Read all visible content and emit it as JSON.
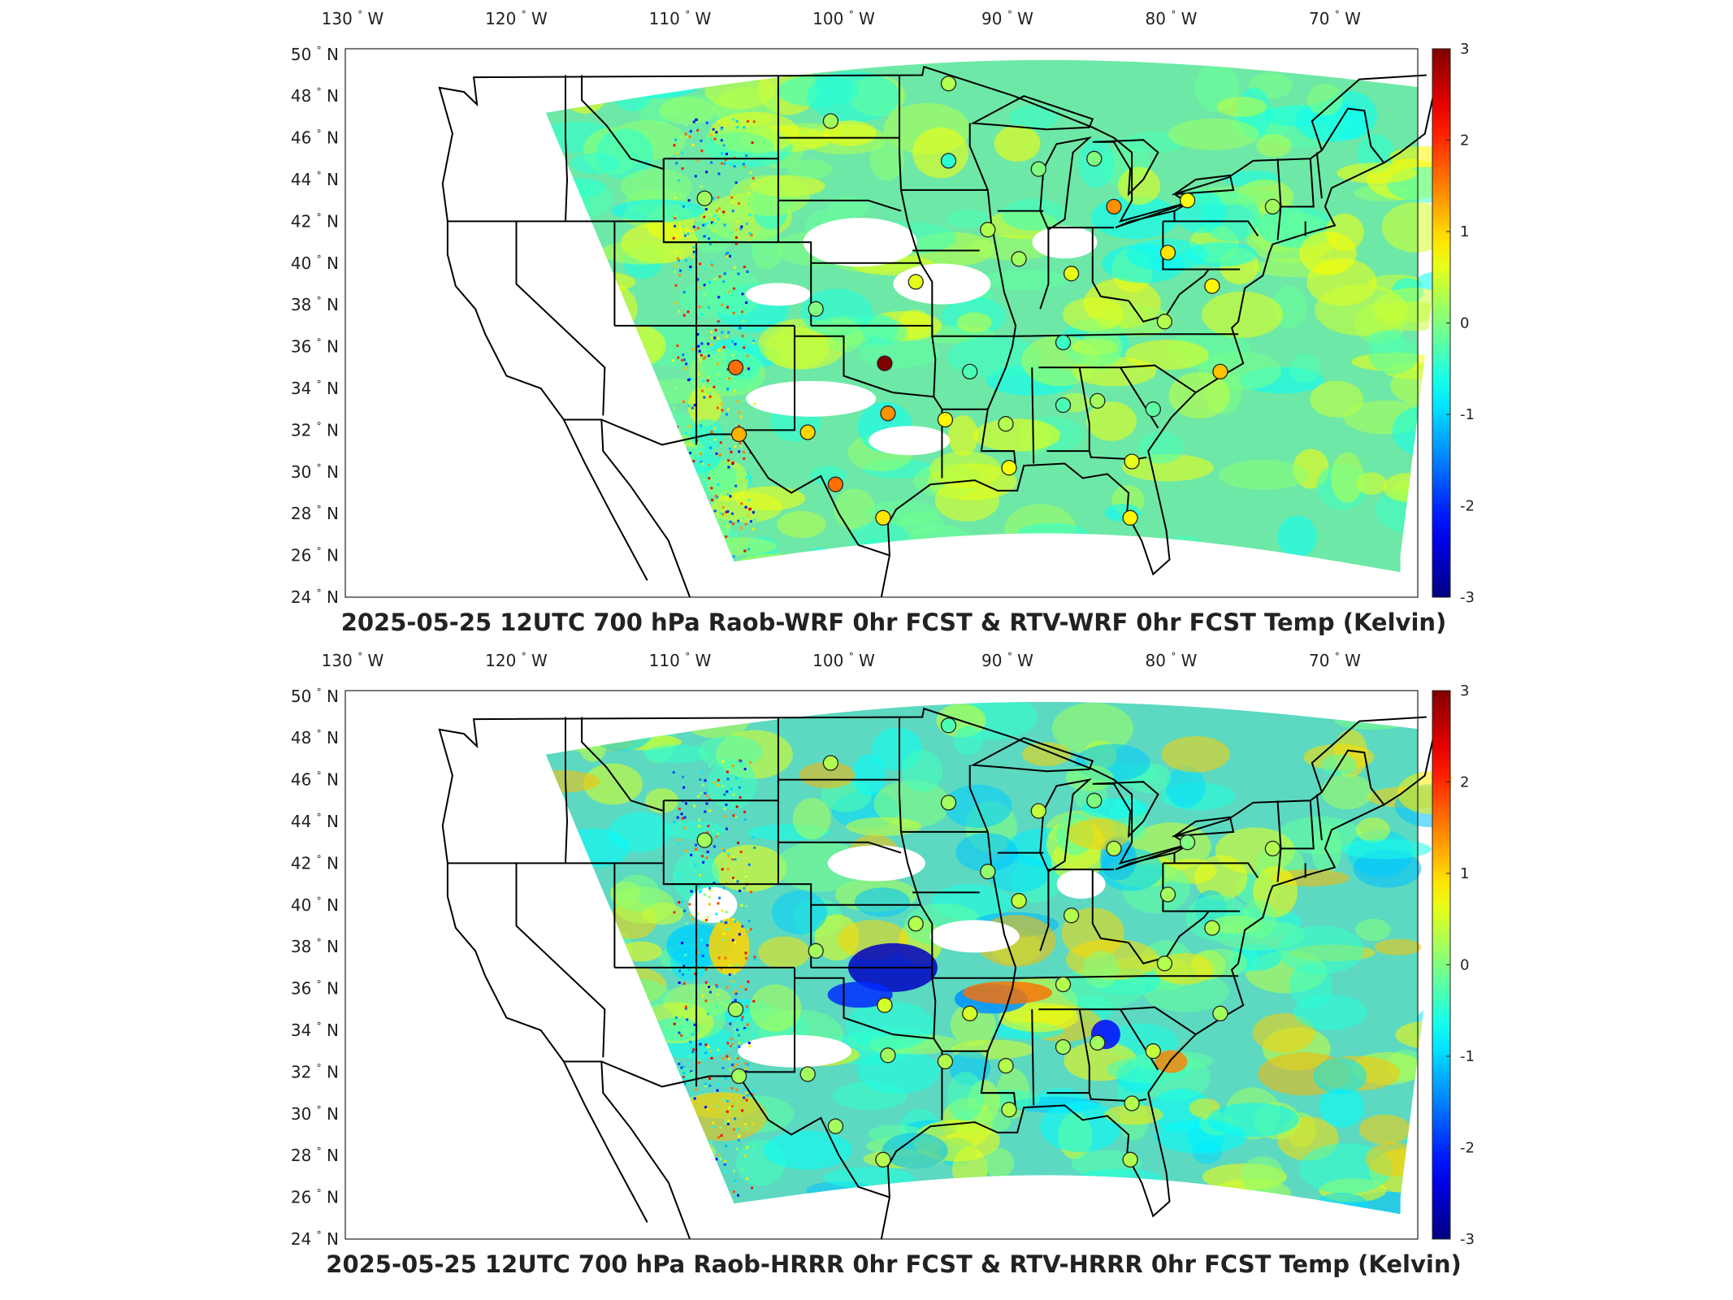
{
  "longitude_labels": [
    {
      "deg": "130",
      "dir": "W"
    },
    {
      "deg": "120",
      "dir": "W"
    },
    {
      "deg": "110",
      "dir": "W"
    },
    {
      "deg": "100",
      "dir": "W"
    },
    {
      "deg": "90",
      "dir": "W"
    },
    {
      "deg": "80",
      "dir": "W"
    },
    {
      "deg": "70",
      "dir": "W"
    }
  ],
  "latitude_labels": [
    {
      "deg": "50",
      "dir": "N"
    },
    {
      "deg": "48",
      "dir": "N"
    },
    {
      "deg": "46",
      "dir": "N"
    },
    {
      "deg": "44",
      "dir": "N"
    },
    {
      "deg": "42",
      "dir": "N"
    },
    {
      "deg": "40",
      "dir": "N"
    },
    {
      "deg": "38",
      "dir": "N"
    },
    {
      "deg": "36",
      "dir": "N"
    },
    {
      "deg": "34",
      "dir": "N"
    },
    {
      "deg": "32",
      "dir": "N"
    },
    {
      "deg": "30",
      "dir": "N"
    },
    {
      "deg": "28",
      "dir": "N"
    },
    {
      "deg": "26",
      "dir": "N"
    },
    {
      "deg": "24",
      "dir": "N"
    }
  ],
  "degree_symbol": "°",
  "colorbar": {
    "min": -3,
    "max": 3,
    "ticks": [
      "3",
      "2",
      "1",
      "0",
      "-1",
      "-2",
      "-3"
    ],
    "colormap": "jet"
  },
  "panels": [
    {
      "id": "top",
      "title": "2025-05-25 12UTC 700 hPa Raob-WRF 0hr FCST & RTV-WRF 0hr FCST Temp (Kelvin)",
      "field_tint": "#6ee8a6",
      "stations": [
        {
          "lon": -93.6,
          "lat": 48.6,
          "v": 0.3
        },
        {
          "lon": -100.8,
          "lat": 46.8,
          "v": 0.2
        },
        {
          "lon": -93.6,
          "lat": 44.9,
          "v": -0.5
        },
        {
          "lon": -88.1,
          "lat": 44.5,
          "v": 0.0
        },
        {
          "lon": -84.7,
          "lat": 45.0,
          "v": 0.0
        },
        {
          "lon": -108.5,
          "lat": 43.1,
          "v": 0.2
        },
        {
          "lon": -83.5,
          "lat": 42.7,
          "v": 1.4
        },
        {
          "lon": -79.0,
          "lat": 43.0,
          "v": 0.7
        },
        {
          "lon": -73.8,
          "lat": 42.7,
          "v": 0.2
        },
        {
          "lon": -91.2,
          "lat": 41.6,
          "v": 0.3
        },
        {
          "lon": -89.3,
          "lat": 40.2,
          "v": 0.2
        },
        {
          "lon": -86.1,
          "lat": 39.5,
          "v": 0.6
        },
        {
          "lon": -80.2,
          "lat": 40.5,
          "v": 0.9
        },
        {
          "lon": -95.6,
          "lat": 39.1,
          "v": 0.6
        },
        {
          "lon": -101.7,
          "lat": 37.8,
          "v": 0.0
        },
        {
          "lon": -77.5,
          "lat": 38.9,
          "v": 0.8
        },
        {
          "lon": -80.4,
          "lat": 37.2,
          "v": 0.3
        },
        {
          "lon": -86.6,
          "lat": 36.2,
          "v": -0.4
        },
        {
          "lon": -97.5,
          "lat": 35.2,
          "v": 3.0
        },
        {
          "lon": -106.6,
          "lat": 35.0,
          "v": 1.6
        },
        {
          "lon": -92.3,
          "lat": 34.8,
          "v": -0.3
        },
        {
          "lon": -77.0,
          "lat": 34.8,
          "v": 1.1
        },
        {
          "lon": -97.3,
          "lat": 32.8,
          "v": 1.4
        },
        {
          "lon": -93.8,
          "lat": 32.5,
          "v": 0.8
        },
        {
          "lon": -90.1,
          "lat": 32.3,
          "v": 0.3
        },
        {
          "lon": -86.6,
          "lat": 33.2,
          "v": -0.3
        },
        {
          "lon": -84.5,
          "lat": 33.4,
          "v": 0.2
        },
        {
          "lon": -81.1,
          "lat": 33.0,
          "v": -0.2
        },
        {
          "lon": -106.4,
          "lat": 31.8,
          "v": 1.2
        },
        {
          "lon": -102.2,
          "lat": 31.9,
          "v": 1.0
        },
        {
          "lon": -100.5,
          "lat": 29.4,
          "v": 1.6
        },
        {
          "lon": -97.6,
          "lat": 27.8,
          "v": 0.9
        },
        {
          "lon": -89.9,
          "lat": 30.2,
          "v": 0.7
        },
        {
          "lon": -82.4,
          "lat": 30.5,
          "v": 0.6
        },
        {
          "lon": -82.5,
          "lat": 27.8,
          "v": 0.8
        }
      ]
    },
    {
      "id": "bottom",
      "title": "2025-05-25 12UTC 700 hPa Raob-HRRR 0hr FCST & RTV-HRRR 0hr FCST Temp (Kelvin)",
      "field_tint": "#5cd9c0",
      "stations": [
        {
          "lon": -93.6,
          "lat": 48.6,
          "v": -0.3
        },
        {
          "lon": -100.8,
          "lat": 46.8,
          "v": 0.3
        },
        {
          "lon": -93.6,
          "lat": 44.9,
          "v": 0.2
        },
        {
          "lon": -88.1,
          "lat": 44.5,
          "v": 0.4
        },
        {
          "lon": -84.7,
          "lat": 45.0,
          "v": 0.0
        },
        {
          "lon": -108.5,
          "lat": 43.1,
          "v": 0.2
        },
        {
          "lon": -83.5,
          "lat": 42.7,
          "v": 0.3
        },
        {
          "lon": -79.0,
          "lat": 43.0,
          "v": 0.0
        },
        {
          "lon": -73.8,
          "lat": 42.7,
          "v": 0.3
        },
        {
          "lon": -91.2,
          "lat": 41.6,
          "v": 0.1
        },
        {
          "lon": -89.3,
          "lat": 40.2,
          "v": 0.4
        },
        {
          "lon": -86.1,
          "lat": 39.5,
          "v": 0.3
        },
        {
          "lon": -80.2,
          "lat": 40.5,
          "v": 0.2
        },
        {
          "lon": -95.6,
          "lat": 39.1,
          "v": 0.3
        },
        {
          "lon": -101.7,
          "lat": 37.8,
          "v": 0.2
        },
        {
          "lon": -77.5,
          "lat": 38.9,
          "v": 0.3
        },
        {
          "lon": -80.4,
          "lat": 37.2,
          "v": 0.3
        },
        {
          "lon": -86.6,
          "lat": 36.2,
          "v": 0.3
        },
        {
          "lon": -97.5,
          "lat": 35.2,
          "v": 0.5
        },
        {
          "lon": -106.6,
          "lat": 35.0,
          "v": 0.2
        },
        {
          "lon": -92.3,
          "lat": 34.8,
          "v": 0.5
        },
        {
          "lon": -77.0,
          "lat": 34.8,
          "v": 0.2
        },
        {
          "lon": -97.3,
          "lat": 32.8,
          "v": 0.2
        },
        {
          "lon": -93.8,
          "lat": 32.5,
          "v": 0.3
        },
        {
          "lon": -90.1,
          "lat": 32.3,
          "v": 0.3
        },
        {
          "lon": -86.6,
          "lat": 33.2,
          "v": 0.2
        },
        {
          "lon": -84.5,
          "lat": 33.4,
          "v": 0.2
        },
        {
          "lon": -81.1,
          "lat": 33.0,
          "v": 0.4
        },
        {
          "lon": -106.4,
          "lat": 31.8,
          "v": 0.2
        },
        {
          "lon": -102.2,
          "lat": 31.9,
          "v": 0.2
        },
        {
          "lon": -100.5,
          "lat": 29.4,
          "v": 0.2
        },
        {
          "lon": -97.6,
          "lat": 27.8,
          "v": 0.3
        },
        {
          "lon": -89.9,
          "lat": 30.2,
          "v": 0.3
        },
        {
          "lon": -82.4,
          "lat": 30.5,
          "v": 0.3
        },
        {
          "lon": -82.5,
          "lat": 27.8,
          "v": 0.3
        }
      ]
    }
  ]
}
